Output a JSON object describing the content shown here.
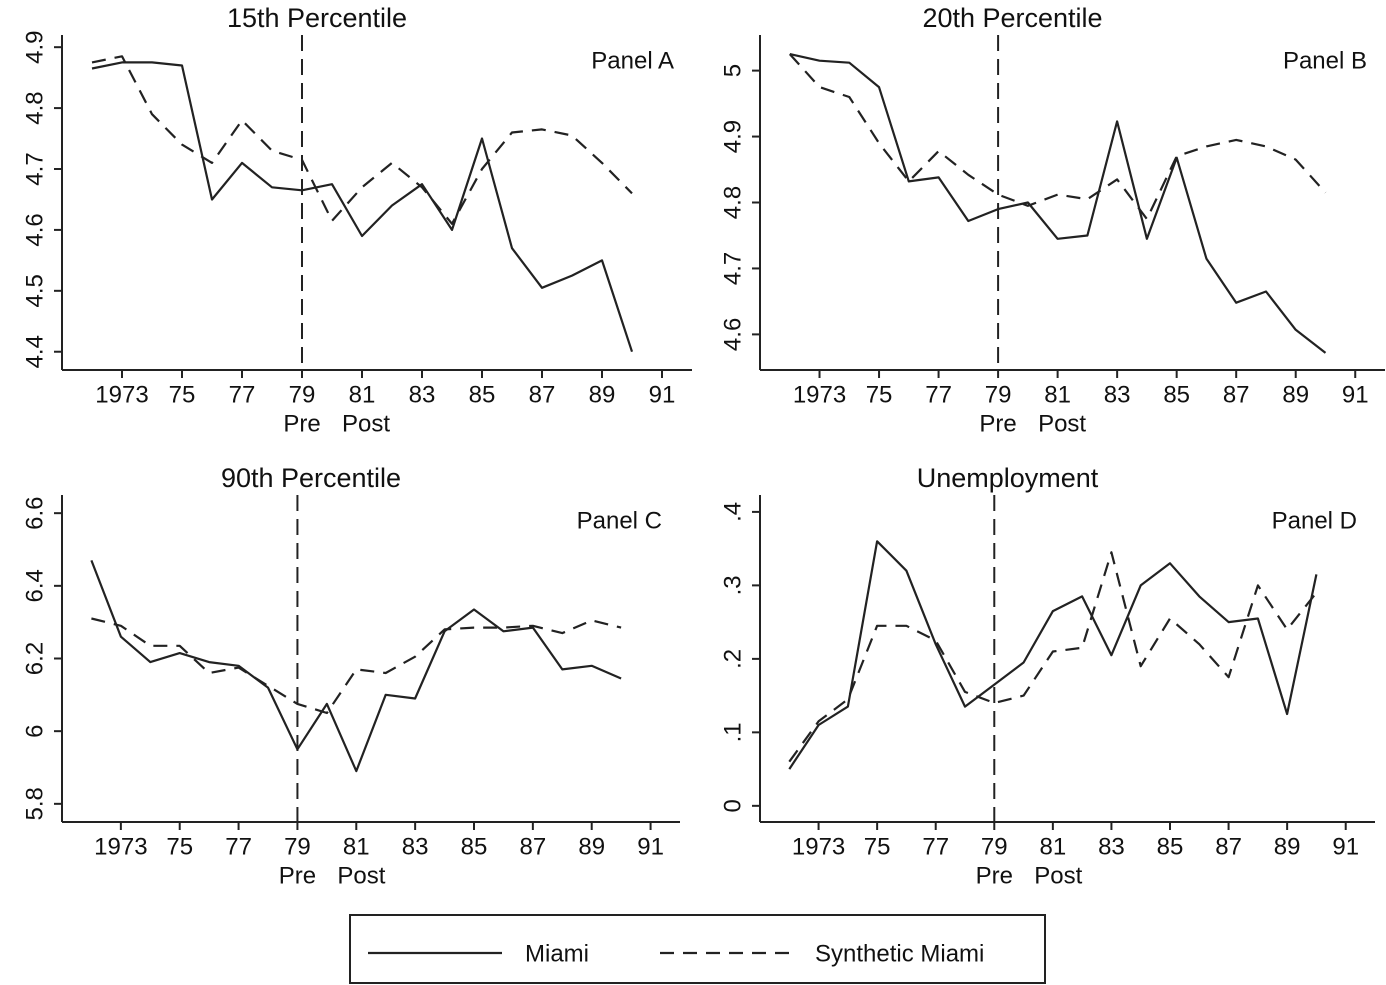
{
  "chart_data": [
    {
      "type": "line",
      "title": "15th Percentile",
      "panel_label": "Panel A",
      "pre_label": "Pre",
      "post_label": "Post",
      "vline": 1979,
      "x": [
        1972,
        1973,
        1974,
        1975,
        1976,
        1977,
        1978,
        1979,
        1980,
        1981,
        1982,
        1983,
        1984,
        1985,
        1986,
        1987,
        1988,
        1989,
        1990
      ],
      "xlim": [
        1971,
        1992
      ],
      "xticks": [
        1973,
        {
          "value": 1975,
          "label": "75"
        },
        {
          "value": 1977,
          "label": "77"
        },
        {
          "value": 1979,
          "label": "79"
        },
        {
          "value": 1981,
          "label": "81"
        },
        {
          "value": 1983,
          "label": "83"
        },
        {
          "value": 1985,
          "label": "85"
        },
        {
          "value": 1987,
          "label": "87"
        },
        {
          "value": 1989,
          "label": "89"
        },
        {
          "value": 1991,
          "label": "91"
        }
      ],
      "ylim": [
        4.37,
        4.92
      ],
      "yticks": [
        4.4,
        4.5,
        4.6,
        4.7,
        4.8,
        4.9
      ],
      "series": [
        {
          "name": "Miami",
          "color": "#222222",
          "dash": "solid",
          "values": [
            4.865,
            4.875,
            4.875,
            4.87,
            4.65,
            4.71,
            4.67,
            4.665,
            4.675,
            4.59,
            4.64,
            4.675,
            4.6,
            4.75,
            4.57,
            4.505,
            4.525,
            4.55,
            4.4
          ]
        },
        {
          "name": "Synthetic Miami",
          "color": "#222222",
          "dash": "dashed",
          "values": [
            4.875,
            4.885,
            4.79,
            4.74,
            4.71,
            4.78,
            4.73,
            4.715,
            4.615,
            4.67,
            4.71,
            4.67,
            4.61,
            4.7,
            4.76,
            4.765,
            4.755,
            4.71,
            4.66
          ]
        }
      ]
    },
    {
      "type": "line",
      "title": "20th Percentile",
      "panel_label": "Panel B",
      "pre_label": "Pre",
      "post_label": "Post",
      "vline": 1979,
      "x": [
        1972,
        1973,
        1974,
        1975,
        1976,
        1977,
        1978,
        1979,
        1980,
        1981,
        1982,
        1983,
        1984,
        1985,
        1986,
        1987,
        1988,
        1989,
        1990
      ],
      "xlim": [
        1971,
        1992
      ],
      "xticks": [
        1973,
        {
          "value": 1975,
          "label": "75"
        },
        {
          "value": 1977,
          "label": "77"
        },
        {
          "value": 1979,
          "label": "79"
        },
        {
          "value": 1981,
          "label": "81"
        },
        {
          "value": 1983,
          "label": "83"
        },
        {
          "value": 1985,
          "label": "85"
        },
        {
          "value": 1987,
          "label": "87"
        },
        {
          "value": 1989,
          "label": "89"
        },
        {
          "value": 1991,
          "label": "91"
        }
      ],
      "ylim": [
        4.546,
        5.054
      ],
      "yticks": [
        4.6,
        4.7,
        4.8,
        4.9,
        5
      ],
      "series": [
        {
          "color": "#222222",
          "dash": "solid",
          "values": [
            5.025,
            5.015,
            5.012,
            4.975,
            4.832,
            4.838,
            4.772,
            4.79,
            4.8,
            4.745,
            4.75,
            4.923,
            4.745,
            4.868,
            4.715,
            4.648,
            4.665,
            4.607,
            4.572
          ]
        },
        {
          "color": "#222222",
          "dash": "dashed",
          "values": [
            5.025,
            4.975,
            4.96,
            4.89,
            4.832,
            4.878,
            4.842,
            4.812,
            4.795,
            4.812,
            4.805,
            4.835,
            4.775,
            4.87,
            4.885,
            4.895,
            4.885,
            4.865,
            4.815
          ]
        }
      ]
    },
    {
      "type": "line",
      "title": "90th Percentile",
      "panel_label": "Panel C",
      "pre_label": "Pre",
      "post_label": "Post",
      "vline": 1979,
      "x": [
        1972,
        1973,
        1974,
        1975,
        1976,
        1977,
        1978,
        1979,
        1980,
        1981,
        1982,
        1983,
        1984,
        1985,
        1986,
        1987,
        1988,
        1989,
        1990
      ],
      "xlim": [
        1971,
        1992
      ],
      "xticks": [
        1973,
        {
          "value": 1975,
          "label": "75"
        },
        {
          "value": 1977,
          "label": "77"
        },
        {
          "value": 1979,
          "label": "79"
        },
        {
          "value": 1981,
          "label": "81"
        },
        {
          "value": 1983,
          "label": "83"
        },
        {
          "value": 1985,
          "label": "85"
        },
        {
          "value": 1987,
          "label": "87"
        },
        {
          "value": 1989,
          "label": "89"
        },
        {
          "value": 1991,
          "label": "91"
        }
      ],
      "ylim": [
        5.75,
        6.65
      ],
      "yticks": [
        5.8,
        6,
        6.2,
        6.4,
        6.6
      ],
      "series": [
        {
          "color": "#222222",
          "dash": "solid",
          "values": [
            6.47,
            6.26,
            6.19,
            6.215,
            6.19,
            6.18,
            6.12,
            5.95,
            6.075,
            5.89,
            6.1,
            6.09,
            6.275,
            6.335,
            6.275,
            6.285,
            6.17,
            6.18,
            6.145
          ]
        },
        {
          "color": "#222222",
          "dash": "dashed",
          "values": [
            6.31,
            6.29,
            6.235,
            6.235,
            6.16,
            6.175,
            6.125,
            6.075,
            6.05,
            6.17,
            6.16,
            6.205,
            6.28,
            6.285,
            6.285,
            6.29,
            6.27,
            6.305,
            6.285
          ]
        }
      ]
    },
    {
      "type": "line",
      "title": "Unemployment",
      "panel_label": "Panel D",
      "pre_label": "Pre",
      "post_label": "Post",
      "vline": 1979,
      "x": [
        1972,
        1973,
        1974,
        1975,
        1976,
        1977,
        1978,
        1979,
        1980,
        1981,
        1982,
        1983,
        1984,
        1985,
        1986,
        1987,
        1988,
        1989,
        1990
      ],
      "xlim": [
        1971,
        1992
      ],
      "xticks": [
        1973,
        {
          "value": 1975,
          "label": "75"
        },
        {
          "value": 1977,
          "label": "77"
        },
        {
          "value": 1979,
          "label": "79"
        },
        {
          "value": 1981,
          "label": "81"
        },
        {
          "value": 1983,
          "label": "83"
        },
        {
          "value": 1985,
          "label": "85"
        },
        {
          "value": 1987,
          "label": "87"
        },
        {
          "value": 1989,
          "label": "89"
        },
        {
          "value": 1991,
          "label": "91"
        }
      ],
      "ylim": [
        -0.022,
        0.423
      ],
      "yticks": [
        0,
        {
          "value": 0.1,
          "label": ".1"
        },
        {
          "value": 0.2,
          "label": ".2"
        },
        {
          "value": 0.3,
          "label": ".3"
        },
        {
          "value": 0.4,
          "label": ".4"
        }
      ],
      "series": [
        {
          "color": "#222222",
          "dash": "solid",
          "values": [
            0.05,
            0.11,
            0.135,
            0.36,
            0.32,
            0.22,
            0.135,
            0.165,
            0.195,
            0.265,
            0.285,
            0.205,
            0.3,
            0.33,
            0.285,
            0.25,
            0.255,
            0.125,
            0.315
          ]
        },
        {
          "color": "#222222",
          "dash": "dashed",
          "values": [
            0.06,
            0.115,
            0.145,
            0.245,
            0.245,
            0.225,
            0.155,
            0.14,
            0.15,
            0.21,
            0.215,
            0.345,
            0.19,
            0.255,
            0.22,
            0.175,
            0.3,
            0.24,
            0.29
          ]
        }
      ]
    }
  ]
}
